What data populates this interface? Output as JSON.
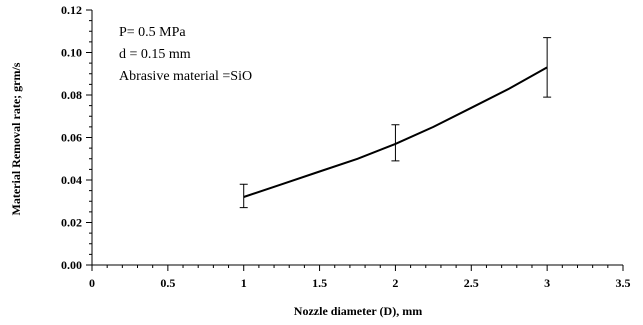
{
  "chart_data": {
    "type": "line",
    "title": "",
    "xlabel": "Nozzle diameter (D), mm",
    "ylabel": "Material Removal rate; grm/s",
    "xlim": [
      0,
      3.5
    ],
    "ylim": [
      0,
      0.12
    ],
    "x_ticks": [
      0,
      0.5,
      1,
      1.5,
      2,
      2.5,
      3,
      3.5
    ],
    "x_tick_labels": [
      "0",
      "0.5",
      "1",
      "1.5",
      "2",
      "2.5",
      "3",
      "3.5"
    ],
    "y_ticks": [
      0,
      0.02,
      0.04,
      0.06,
      0.08,
      0.1,
      0.12
    ],
    "y_tick_labels": [
      "0.00",
      "0.02",
      "0.04",
      "0.06",
      "0.08",
      "0.10",
      "0.12"
    ],
    "grid": false,
    "legend": "none",
    "series": [
      {
        "x": [
          1,
          1.25,
          1.5,
          1.75,
          2,
          2.25,
          2.5,
          2.75,
          3
        ],
        "y": [
          0.032,
          0.038,
          0.044,
          0.05,
          0.057,
          0.065,
          0.074,
          0.083,
          0.093
        ],
        "error_bars": [
          {
            "x": 1,
            "low": 0.027,
            "high": 0.038
          },
          {
            "x": 2,
            "low": 0.049,
            "high": 0.066
          },
          {
            "x": 3,
            "low": 0.079,
            "high": 0.107
          }
        ],
        "color": "#000000"
      }
    ],
    "annotations": [
      "P= 0.5 MPa",
      "d = 0.15 mm",
      "Abrasive material =SiO"
    ]
  }
}
